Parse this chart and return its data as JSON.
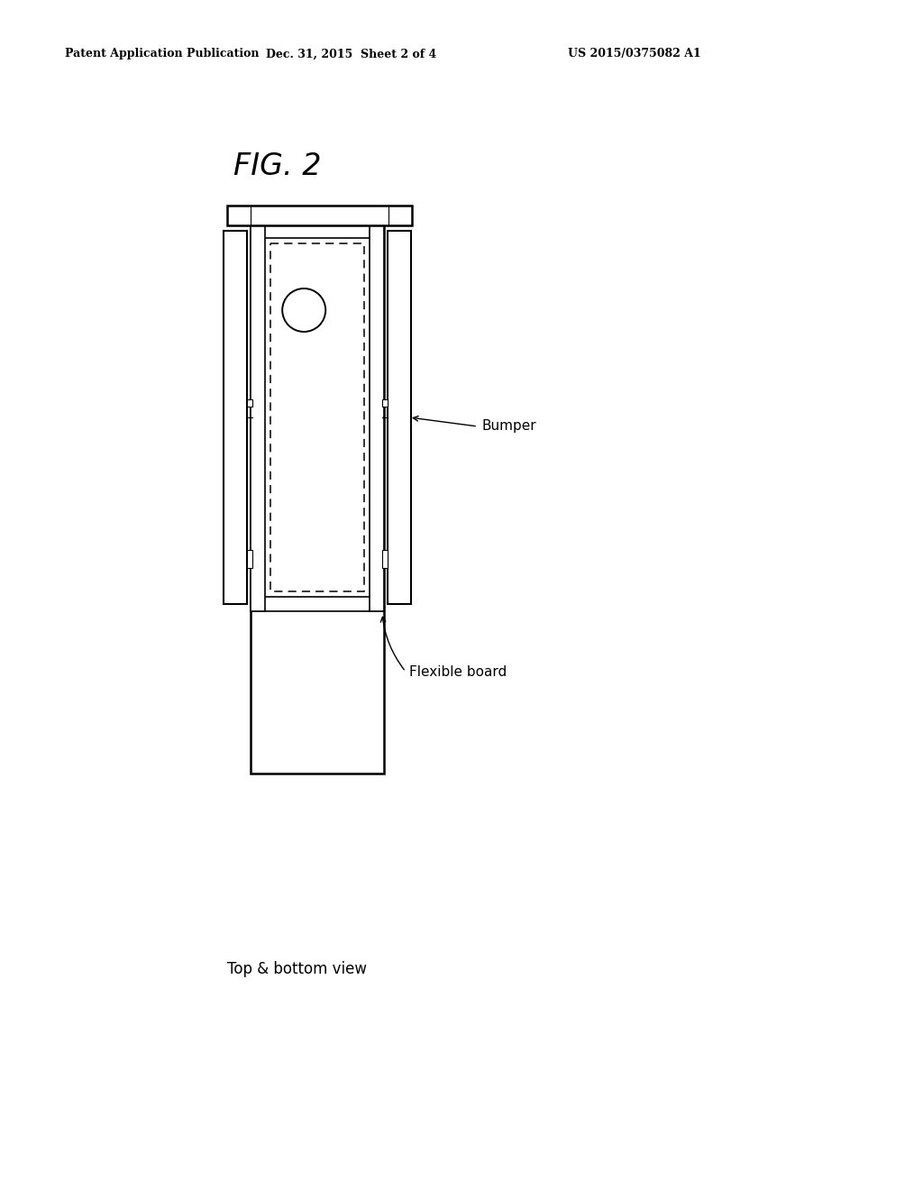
{
  "background_color": "#ffffff",
  "header_left": "Patent Application Publication",
  "header_mid": "Dec. 31, 2015  Sheet 2 of 4",
  "header_right": "US 2015/0375082 A1",
  "fig_label": "FIG. 2",
  "caption": "Top & bottom view",
  "label_bumper": "Bumper",
  "label_flexible_board": "Flexible board",
  "line_color": "#000000",
  "lw": 1.5,
  "lw_thick": 2.0
}
